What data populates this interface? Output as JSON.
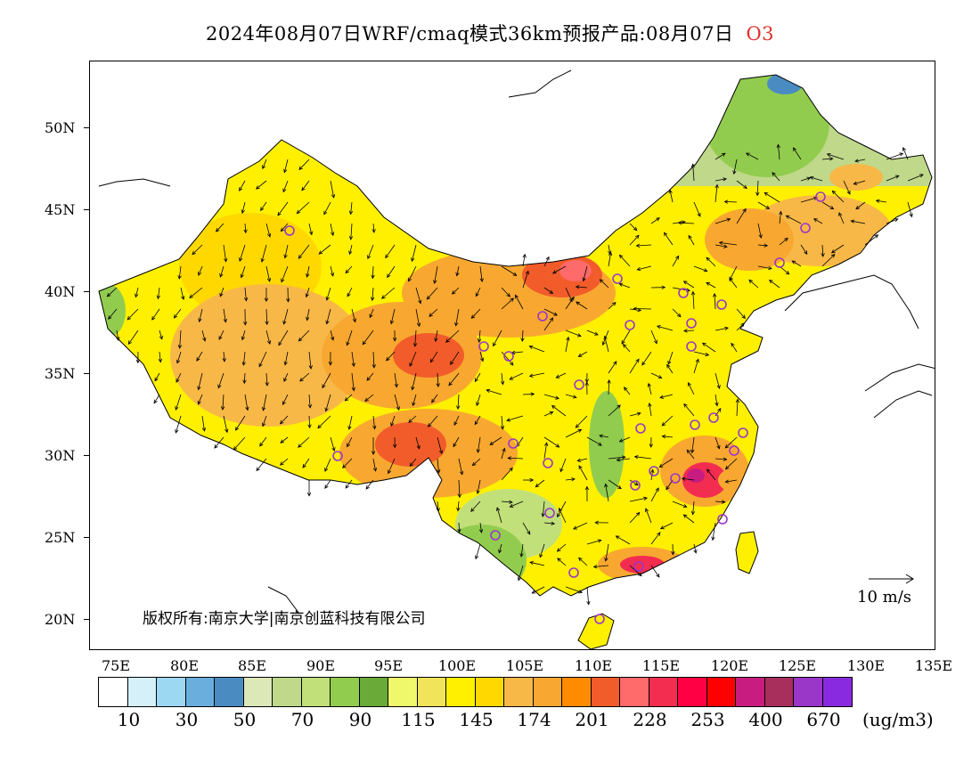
{
  "title": {
    "main": "2024年08月07日WRF/cmaq模式36km预报产品:08月07日",
    "pollutant": "O3"
  },
  "axes": {
    "lat_labels": [
      "50N",
      "45N",
      "40N",
      "35N",
      "30N",
      "25N",
      "20N"
    ],
    "lon_labels": [
      "75E",
      "80E",
      "85E",
      "90E",
      "95E",
      "100E",
      "105E",
      "110E",
      "115E",
      "120E",
      "125E",
      "130E",
      "135E"
    ]
  },
  "map_overlay": {
    "copyright": "版权所有:南京大学|南京创蓝科技有限公司",
    "wind_scale_label": "10 m/s"
  },
  "legend": {
    "colors": [
      "#ffffff",
      "#d6f0fa",
      "#9cd8f2",
      "#6aaede",
      "#4a8cc2",
      "#dde8b8",
      "#c0d88a",
      "#c2e07a",
      "#92cc4e",
      "#6aaa38",
      "#eef86a",
      "#f2e45a",
      "#fff000",
      "#ffd800",
      "#f8b848",
      "#f8a830",
      "#ff8c00",
      "#f25c2a",
      "#ff6a6a",
      "#f22d50",
      "#ff0044",
      "#ff0000",
      "#c81c80",
      "#a82e5c",
      "#9a36c8",
      "#8a2ae0"
    ],
    "labels": [
      "10",
      "30",
      "50",
      "70",
      "90",
      "115",
      "145",
      "174",
      "201",
      "228",
      "253",
      "400",
      "670"
    ],
    "unit": "(ug/m3)"
  }
}
